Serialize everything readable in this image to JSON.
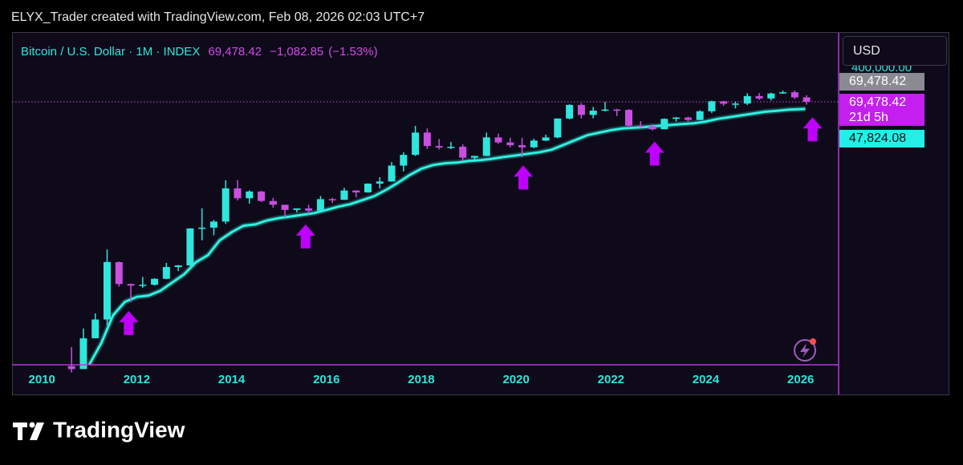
{
  "header": {
    "credit": "ELYX_Trader created with TradingView.com, Feb 08, 2026 02:03 UTC+7"
  },
  "footer": {
    "brand": "TradingView"
  },
  "chart_data": {
    "type": "candlestick",
    "log_scale": true,
    "currency": "USD",
    "xlim": [
      2009.37,
      2026.8
    ],
    "xticks": [
      2010,
      2012,
      2014,
      2016,
      2018,
      2020,
      2022,
      2024,
      2026
    ],
    "ylim": [
      0.075,
      2650000
    ],
    "yticks": [
      {
        "value": 400000,
        "label": "400,000.00"
      }
    ],
    "legend": {
      "price": {
        "value": 69478.42,
        "label": "69,478.42"
      },
      "change": {
        "value": -1082.85,
        "label": "−1,082.85"
      },
      "change_pct": {
        "value": -1.53,
        "label": "(−1.53%)"
      }
    },
    "candles": {
      "name": "Bitcoin / U.S. Dollar · 1M · INDEX",
      "up_color": "#2ee6dc",
      "down_color": "#c84fe0",
      "x": [
        2010.625,
        2010.875,
        2011.125,
        2011.375,
        2011.625,
        2011.875,
        2012.125,
        2012.375,
        2012.625,
        2012.875,
        2013.125,
        2013.375,
        2013.625,
        2013.875,
        2014.125,
        2014.375,
        2014.625,
        2014.875,
        2015.125,
        2015.375,
        2015.625,
        2015.875,
        2016.125,
        2016.375,
        2016.625,
        2016.875,
        2017.125,
        2017.375,
        2017.625,
        2017.875,
        2018.125,
        2018.375,
        2018.625,
        2018.875,
        2019.125,
        2019.375,
        2019.625,
        2019.875,
        2020.125,
        2020.375,
        2020.625,
        2020.875,
        2021.125,
        2021.375,
        2021.625,
        2021.875,
        2022.125,
        2022.375,
        2022.625,
        2022.875,
        2023.125,
        2023.375,
        2023.625,
        2023.875,
        2024.125,
        2024.375,
        2024.625,
        2024.875,
        2025.125,
        2025.375,
        2025.625,
        2025.875,
        2026.125
      ],
      "open": [
        0.07,
        0.06,
        0.3,
        0.8,
        16,
        5.1,
        4.7,
        4.9,
        6.7,
        12.4,
        13.5,
        93,
        97,
        133,
        755,
        450,
        640,
        390,
        320,
        245,
        265,
        236,
        430,
        415,
        675,
        610,
        965,
        1080,
        2480,
        4340,
        13900,
        6900,
        6400,
        6630,
        3740,
        4100,
        10800,
        8300,
        7200,
        6430,
        9140,
        10780,
        28990,
        58800,
        35000,
        43800,
        46300,
        45500,
        19900,
        19400,
        16550,
        28480,
        30470,
        26960,
        42280,
        71330,
        62700,
        63300,
        93400,
        82500,
        107100,
        114000,
        87500
      ],
      "high": [
        0.19,
        0.5,
        1.1,
        31,
        16.5,
        5.2,
        7.4,
        6.9,
        15.4,
        13.8,
        94,
        266,
        145,
        1150,
        1160,
        680,
        660,
        460,
        320,
        265,
        320,
        505,
        460,
        780,
        680,
        980,
        1350,
        2980,
        4980,
        19800,
        17200,
        9990,
        8500,
        7500,
        4140,
        13900,
        13200,
        10550,
        10500,
        10080,
        12480,
        29300,
        61800,
        64900,
        53000,
        69000,
        48200,
        47400,
        25200,
        21500,
        29200,
        31400,
        31800,
        44700,
        73800,
        72800,
        70000,
        108300,
        109600,
        111900,
        124500,
        126200,
        97900
      ],
      "low": [
        0.05,
        0.06,
        0.3,
        0.6,
        4.5,
        2.0,
        4.2,
        4.7,
        6.5,
        10,
        13,
        50,
        65,
        118,
        400,
        340,
        370,
        275,
        165,
        215,
        195,
        235,
        350,
        410,
        470,
        600,
        750,
        1060,
        1830,
        4100,
        5900,
        5780,
        5880,
        3130,
        3350,
        4060,
        7700,
        6430,
        3850,
        6150,
        8900,
        10400,
        27700,
        28800,
        29300,
        41900,
        32900,
        17600,
        18150,
        15480,
        16500,
        24750,
        24900,
        26550,
        38500,
        56500,
        49000,
        58900,
        76600,
        74400,
        105300,
        80600,
        60000
      ],
      "close": [
        0.06,
        0.3,
        0.8,
        16.1,
        5.1,
        4.7,
        4.9,
        6.7,
        12.4,
        13.5,
        93,
        97,
        133,
        755,
        450,
        640,
        390,
        320,
        245,
        265,
        236,
        430,
        415,
        675,
        610,
        965,
        1080,
        2480,
        4340,
        13900,
        6900,
        6400,
        6630,
        3740,
        4100,
        10800,
        8300,
        7200,
        6430,
        9140,
        10780,
        28990,
        58800,
        35000,
        43800,
        46300,
        45500,
        19900,
        19400,
        16550,
        28480,
        30470,
        26960,
        42280,
        71330,
        62700,
        63300,
        93400,
        82500,
        107100,
        114000,
        87500,
        69478.42
      ]
    },
    "ma": {
      "color": "#2ef2e0",
      "x": [
        2011,
        2011.25,
        2011.5,
        2011.75,
        2012,
        2012.25,
        2012.5,
        2012.75,
        2013,
        2013.25,
        2013.5,
        2013.75,
        2014,
        2014.25,
        2014.5,
        2014.75,
        2015,
        2015.25,
        2015.5,
        2015.75,
        2016,
        2016.25,
        2016.5,
        2016.75,
        2017,
        2017.25,
        2017.5,
        2017.75,
        2018,
        2018.25,
        2018.5,
        2018.75,
        2019,
        2019.25,
        2019.5,
        2019.75,
        2020,
        2020.25,
        2020.5,
        2020.75,
        2021,
        2021.25,
        2021.5,
        2021.75,
        2022,
        2022.25,
        2022.5,
        2022.75,
        2023,
        2023.25,
        2023.5,
        2023.75,
        2024,
        2024.25,
        2024.5,
        2024.75,
        2025,
        2025.25,
        2025.5,
        2025.75,
        2026.1
      ],
      "values": [
        0.076,
        0.23,
        1.0,
        2.0,
        2.6,
        2.8,
        3.6,
        5.5,
        8.5,
        16,
        23,
        50,
        76,
        107,
        115,
        141,
        160,
        174,
        190,
        208,
        245,
        290,
        330,
        405,
        500,
        690,
        1000,
        1500,
        2100,
        2560,
        2800,
        2900,
        3150,
        3300,
        3550,
        3900,
        4200,
        4590,
        5000,
        5700,
        7300,
        9400,
        12100,
        13800,
        15800,
        17300,
        18000,
        18800,
        19700,
        20700,
        21700,
        22700,
        24700,
        28400,
        31200,
        34200,
        37600,
        41300,
        43300,
        46000,
        47824.08
      ]
    },
    "price_labels": [
      {
        "value": 69478.42,
        "label": "69,478.42",
        "color": "#8a8a92"
      },
      {
        "value": 69478.42,
        "label": "69,478.42",
        "sublabel": "21d 5h",
        "color": "#c41ff0"
      },
      {
        "value": 47824.08,
        "label": "47,824.08",
        "color": "#22f0e8"
      }
    ],
    "markers": {
      "color": "#c000ff",
      "x": [
        2011.83,
        2015.56,
        2020.15,
        2022.92,
        2026.25
      ],
      "y": [
        1.25,
        115,
        2500,
        8700,
        31000
      ]
    }
  }
}
